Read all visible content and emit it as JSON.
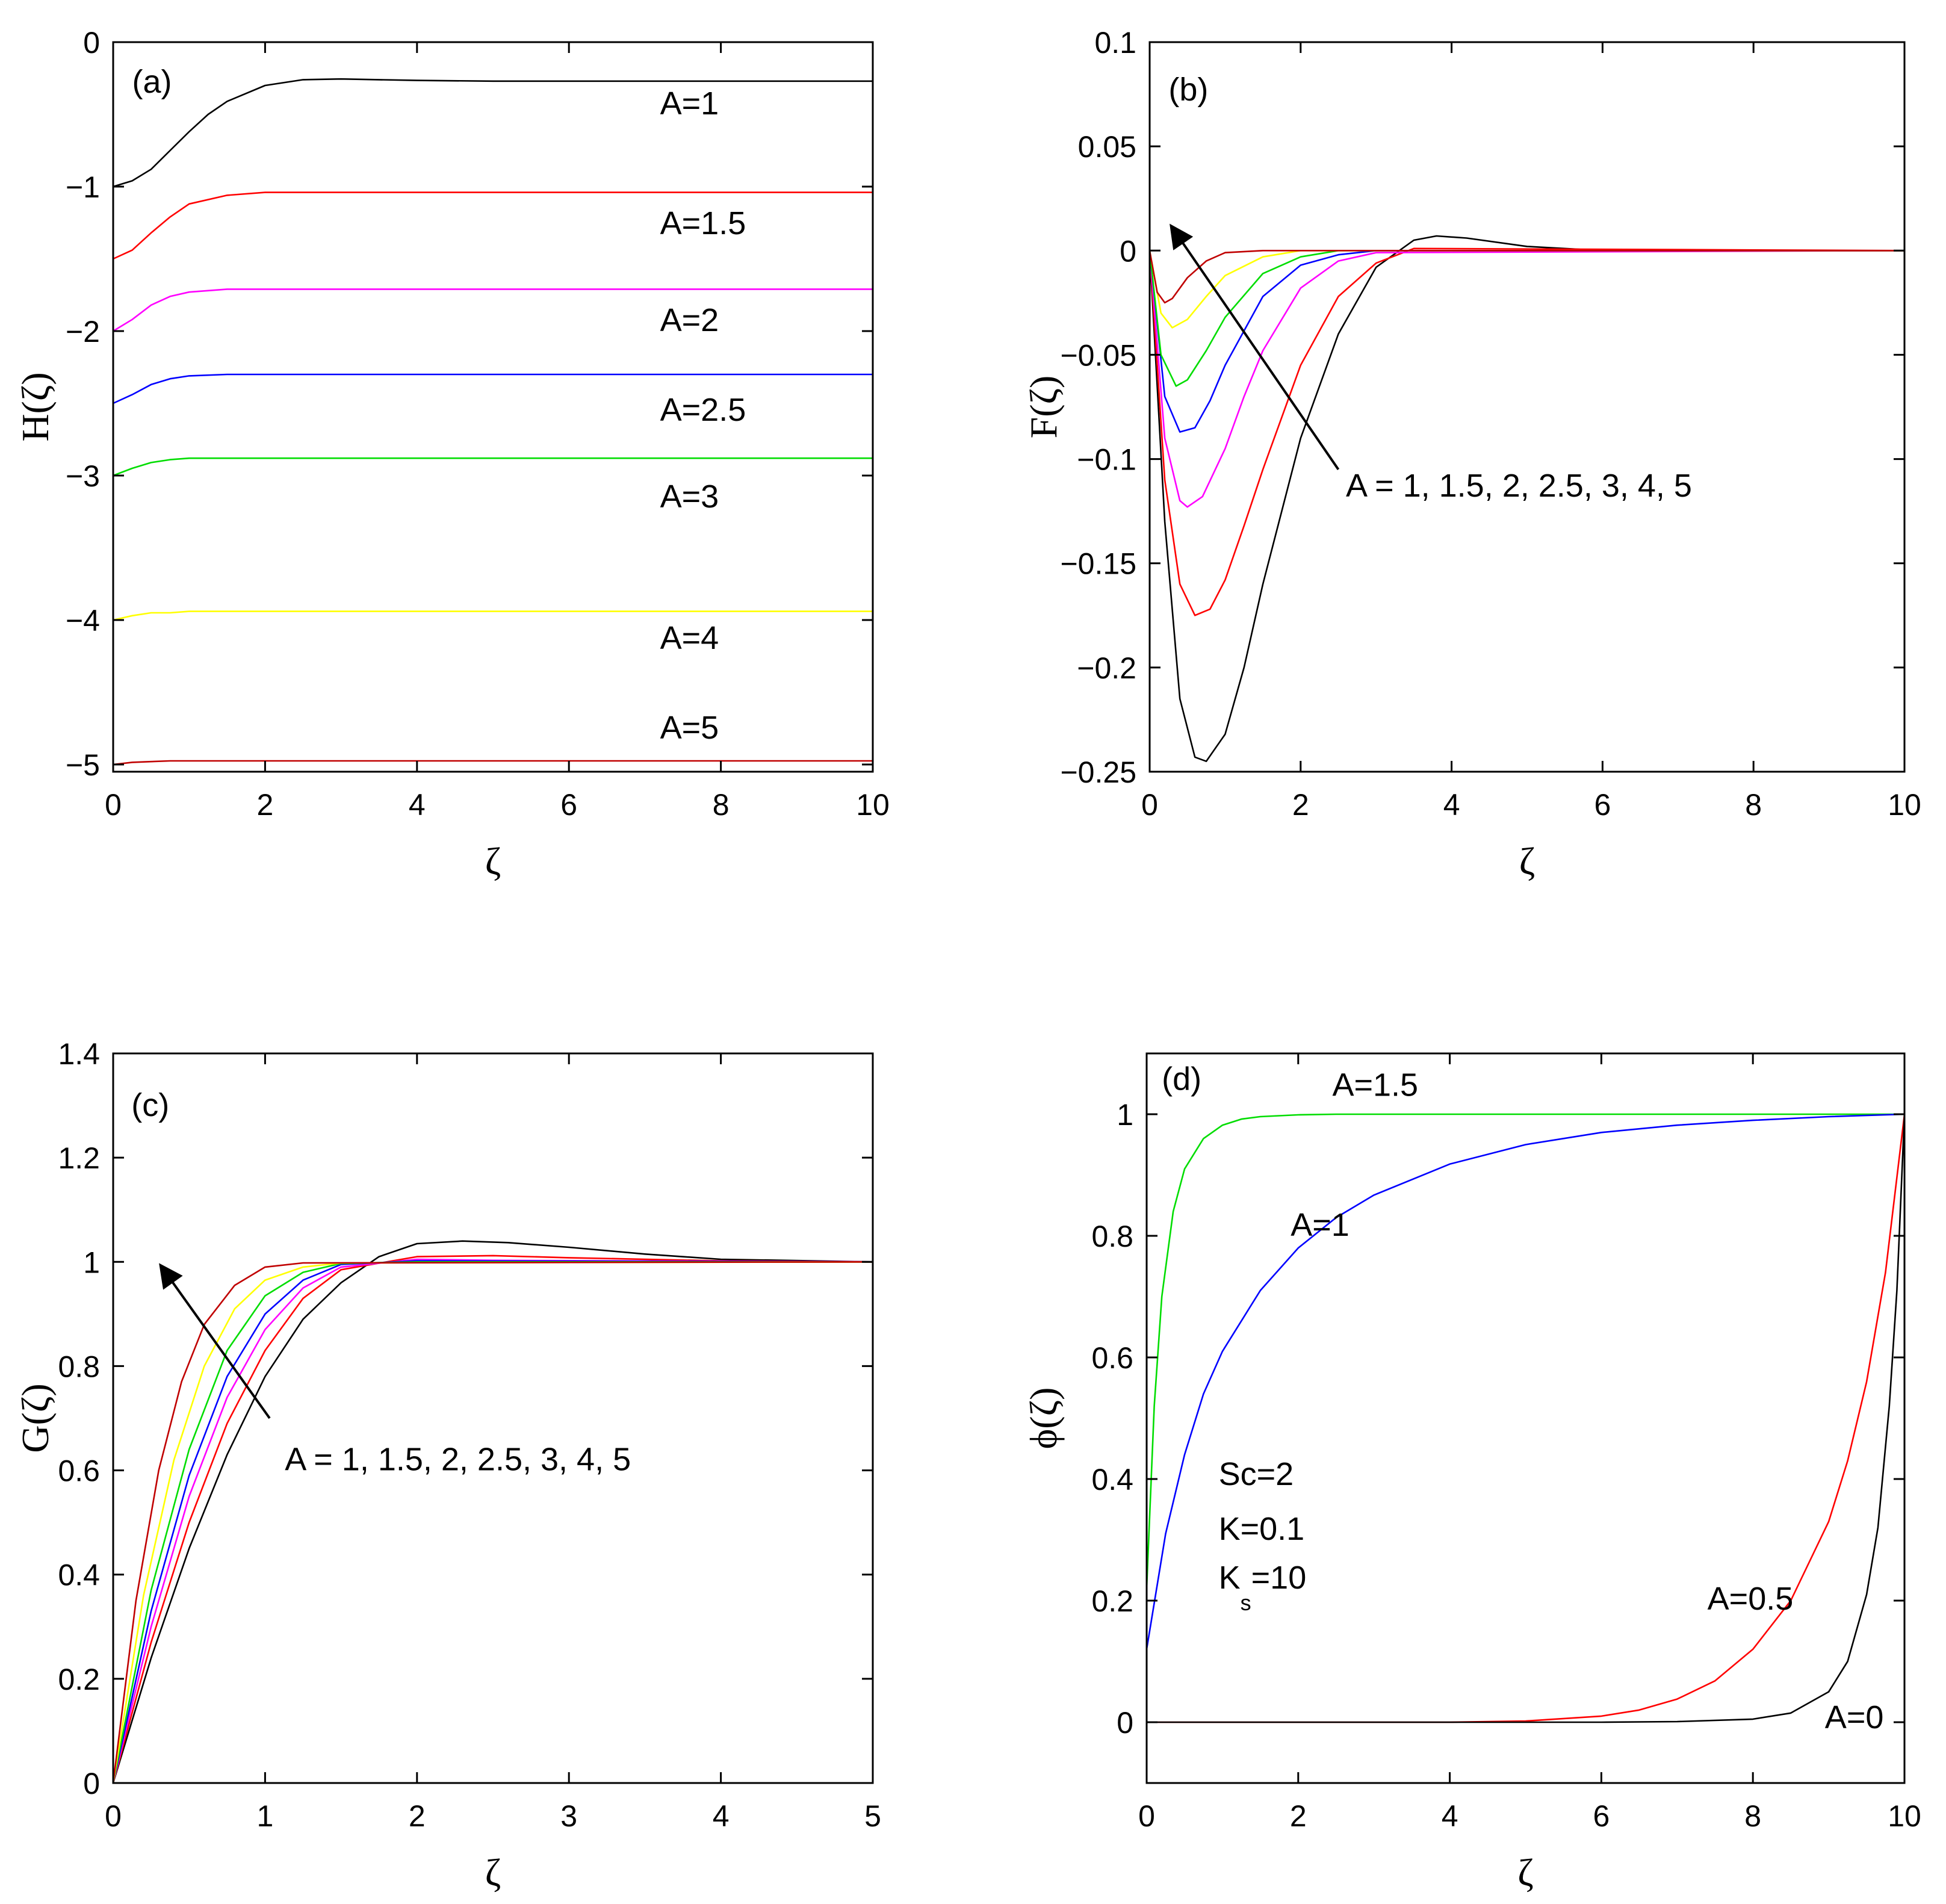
{
  "chart_data": [
    {
      "type": "line",
      "panel_label": "(a)",
      "xlabel": "ζ",
      "ylabel": "H(ζ)",
      "xlim": [
        0,
        10
      ],
      "ylim": [
        -5.05,
        0
      ],
      "xticks": [
        0,
        2,
        4,
        6,
        8,
        10
      ],
      "xtick_labels": [
        "0",
        "2",
        "4",
        "6",
        "8",
        "10"
      ],
      "yticks": [
        0,
        -1,
        -2,
        -3,
        -4,
        -5
      ],
      "ytick_labels": [
        "0",
        "-1",
        "-2",
        "-3",
        "-4",
        "-5"
      ],
      "series": [
        {
          "name": "A=1",
          "color": "#000000",
          "x": [
            0,
            0.25,
            0.5,
            0.75,
            1,
            1.25,
            1.5,
            2,
            2.5,
            3,
            3.5,
            4,
            5,
            6,
            7,
            8,
            10
          ],
          "y": [
            -1.0,
            -0.96,
            -0.88,
            -0.75,
            -0.62,
            -0.5,
            -0.41,
            -0.3,
            -0.26,
            -0.255,
            -0.26,
            -0.265,
            -0.27,
            -0.27,
            -0.27,
            -0.27,
            -0.27
          ]
        },
        {
          "name": "A=1.5",
          "color": "#ff0000",
          "x": [
            0,
            0.25,
            0.5,
            0.75,
            1,
            1.5,
            2,
            2.5,
            3,
            4,
            10
          ],
          "y": [
            -1.5,
            -1.44,
            -1.32,
            -1.21,
            -1.12,
            -1.06,
            -1.04,
            -1.04,
            -1.04,
            -1.04,
            -1.04
          ]
        },
        {
          "name": "A=2",
          "color": "#ff00ff",
          "x": [
            0,
            0.25,
            0.5,
            0.75,
            1,
            1.5,
            2,
            3,
            10
          ],
          "y": [
            -2.0,
            -1.92,
            -1.82,
            -1.76,
            -1.73,
            -1.71,
            -1.71,
            -1.71,
            -1.71
          ]
        },
        {
          "name": "A=2.5",
          "color": "#0000ff",
          "x": [
            0,
            0.25,
            0.5,
            0.75,
            1,
            1.5,
            2,
            10
          ],
          "y": [
            -2.5,
            -2.44,
            -2.37,
            -2.33,
            -2.31,
            -2.3,
            -2.3,
            -2.3
          ]
        },
        {
          "name": "A=3",
          "color": "#00dd00",
          "x": [
            0,
            0.25,
            0.5,
            0.75,
            1,
            1.5,
            10
          ],
          "y": [
            -3.0,
            -2.95,
            -2.91,
            -2.89,
            -2.88,
            -2.88,
            -2.88
          ]
        },
        {
          "name": "A=4",
          "color": "#ffff00",
          "x": [
            0,
            0.25,
            0.5,
            0.75,
            1,
            10
          ],
          "y": [
            -4.0,
            -3.97,
            -3.95,
            -3.95,
            -3.94,
            -3.94
          ]
        },
        {
          "name": "A=5",
          "color": "#c00000",
          "x": [
            0,
            0.25,
            0.5,
            0.75,
            1,
            10
          ],
          "y": [
            -5.0,
            -4.985,
            -4.98,
            -4.975,
            -4.975,
            -4.975
          ]
        }
      ],
      "annotations": [
        {
          "text": "(a)",
          "x": 0.25,
          "y": -0.35
        },
        {
          "text": "A=1",
          "x": 7.2,
          "y": -0.5
        },
        {
          "text": "A=1.5",
          "x": 7.2,
          "y": -1.33
        },
        {
          "text": "A=2",
          "x": 7.2,
          "y": -2.0
        },
        {
          "text": "A=2.5",
          "x": 7.2,
          "y": -2.62
        },
        {
          "text": "A=3",
          "x": 7.2,
          "y": -3.22
        },
        {
          "text": "A=4",
          "x": 7.2,
          "y": -4.2
        },
        {
          "text": "A=5",
          "x": 7.2,
          "y": -4.82
        }
      ]
    },
    {
      "type": "line",
      "panel_label": "(b)",
      "xlabel": "ζ",
      "ylabel": "F(ζ)",
      "xlim": [
        0,
        10
      ],
      "ylim": [
        -0.25,
        0.1
      ],
      "xticks": [
        0,
        2,
        4,
        6,
        8,
        10
      ],
      "xtick_labels": [
        "0",
        "2",
        "4",
        "6",
        "8",
        "10"
      ],
      "yticks": [
        0.1,
        0.05,
        0,
        -0.05,
        -0.1,
        -0.15,
        -0.2,
        -0.25
      ],
      "ytick_labels": [
        "0.1",
        "0.05",
        "0",
        "-0.05",
        "-0.1",
        "-0.15",
        "-0.2",
        "-0.25"
      ],
      "series": [
        {
          "name": "A=1",
          "color": "#000000",
          "x": [
            0,
            0.2,
            0.4,
            0.6,
            0.75,
            1,
            1.25,
            1.5,
            2,
            2.5,
            3,
            3.5,
            3.8,
            4.2,
            5,
            6,
            10
          ],
          "y": [
            0,
            -0.13,
            -0.215,
            -0.243,
            -0.245,
            -0.232,
            -0.2,
            -0.16,
            -0.09,
            -0.04,
            -0.008,
            0.005,
            0.007,
            0.006,
            0.002,
            0.0,
            0
          ]
        },
        {
          "name": "A=1.5",
          "color": "#ff0000",
          "x": [
            0,
            0.2,
            0.4,
            0.6,
            0.8,
            1,
            1.25,
            1.5,
            2,
            2.5,
            3,
            3.5,
            10
          ],
          "y": [
            0,
            -0.11,
            -0.16,
            -0.175,
            -0.172,
            -0.158,
            -0.132,
            -0.105,
            -0.055,
            -0.022,
            -0.006,
            0.001,
            0
          ]
        },
        {
          "name": "A=2",
          "color": "#ff00ff",
          "x": [
            0,
            0.2,
            0.4,
            0.5,
            0.7,
            1,
            1.25,
            1.5,
            2,
            2.5,
            3,
            10
          ],
          "y": [
            0,
            -0.09,
            -0.12,
            -0.123,
            -0.118,
            -0.095,
            -0.07,
            -0.048,
            -0.018,
            -0.005,
            -0.001,
            0
          ]
        },
        {
          "name": "A=2.5",
          "color": "#0000ff",
          "x": [
            0,
            0.2,
            0.4,
            0.6,
            0.8,
            1,
            1.5,
            2,
            2.5,
            3,
            10
          ],
          "y": [
            0,
            -0.07,
            -0.087,
            -0.085,
            -0.072,
            -0.055,
            -0.022,
            -0.007,
            -0.002,
            0,
            0
          ]
        },
        {
          "name": "A=3",
          "color": "#00dd00",
          "x": [
            0,
            0.15,
            0.35,
            0.5,
            0.75,
            1,
            1.5,
            2,
            2.5,
            10
          ],
          "y": [
            0,
            -0.05,
            -0.065,
            -0.062,
            -0.048,
            -0.032,
            -0.011,
            -0.003,
            0,
            0
          ]
        },
        {
          "name": "A=4",
          "color": "#ffff00",
          "x": [
            0,
            0.15,
            0.3,
            0.5,
            0.75,
            1,
            1.5,
            2,
            10
          ],
          "y": [
            0,
            -0.03,
            -0.037,
            -0.033,
            -0.022,
            -0.012,
            -0.003,
            0,
            0
          ]
        },
        {
          "name": "A=5",
          "color": "#c00000",
          "x": [
            0,
            0.1,
            0.2,
            0.3,
            0.5,
            0.75,
            1,
            1.5,
            10
          ],
          "y": [
            0,
            -0.02,
            -0.025,
            -0.023,
            -0.013,
            -0.005,
            -0.001,
            0,
            0
          ]
        }
      ],
      "arrow": {
        "from": [
          2.5,
          -0.105
        ],
        "to": [
          0.3,
          0.011
        ]
      },
      "annotations": [
        {
          "text": "(b)",
          "x": 0.25,
          "y": 0.072
        },
        {
          "text": "A = 1, 1.5, 2, 2.5, 3, 4, 5",
          "x": 2.6,
          "y": -0.118
        }
      ]
    },
    {
      "type": "line",
      "panel_label": "(c)",
      "xlabel": "ζ",
      "ylabel": "G(ζ)",
      "xlim": [
        0,
        5
      ],
      "ylim": [
        0,
        1.4
      ],
      "xticks": [
        0,
        1,
        2,
        3,
        4,
        5
      ],
      "xtick_labels": [
        "0",
        "1",
        "2",
        "3",
        "4",
        "5"
      ],
      "yticks": [
        0,
        0.2,
        0.4,
        0.6,
        0.8,
        1,
        1.2,
        1.4
      ],
      "ytick_labels": [
        "0",
        "0.2",
        "0.4",
        "0.6",
        "0.8",
        "1",
        "1.2",
        "1.4"
      ],
      "series": [
        {
          "name": "A=1",
          "color": "#000000",
          "x": [
            0,
            0.25,
            0.5,
            0.75,
            1,
            1.25,
            1.5,
            1.75,
            2,
            2.3,
            2.6,
            3,
            3.5,
            4,
            5
          ],
          "y": [
            0,
            0.24,
            0.45,
            0.63,
            0.78,
            0.89,
            0.96,
            1.01,
            1.035,
            1.04,
            1.037,
            1.028,
            1.015,
            1.005,
            1.0
          ]
        },
        {
          "name": "A=1.5",
          "color": "#ff0000",
          "x": [
            0,
            0.25,
            0.5,
            0.75,
            1,
            1.25,
            1.5,
            2,
            2.5,
            3,
            4,
            5
          ],
          "y": [
            0,
            0.27,
            0.5,
            0.69,
            0.83,
            0.93,
            0.985,
            1.01,
            1.012,
            1.008,
            1.002,
            1.0
          ]
        },
        {
          "name": "A=2",
          "color": "#ff00ff",
          "x": [
            0,
            0.25,
            0.5,
            0.75,
            1,
            1.25,
            1.5,
            2,
            2.5,
            5
          ],
          "y": [
            0,
            0.3,
            0.55,
            0.74,
            0.87,
            0.95,
            0.99,
            1.005,
            1.003,
            1.0
          ]
        },
        {
          "name": "A=2.5",
          "color": "#0000ff",
          "x": [
            0,
            0.25,
            0.5,
            0.75,
            1,
            1.25,
            1.5,
            2,
            5
          ],
          "y": [
            0,
            0.33,
            0.59,
            0.78,
            0.9,
            0.965,
            0.995,
            1.002,
            1.0
          ]
        },
        {
          "name": "A=3",
          "color": "#00dd00",
          "x": [
            0,
            0.25,
            0.5,
            0.75,
            1,
            1.25,
            1.5,
            2,
            5
          ],
          "y": [
            0,
            0.37,
            0.64,
            0.83,
            0.935,
            0.98,
            0.997,
            1.0,
            1.0
          ]
        },
        {
          "name": "A=4",
          "color": "#ffff00",
          "x": [
            0,
            0.2,
            0.4,
            0.6,
            0.8,
            1,
            1.25,
            1.5,
            5
          ],
          "y": [
            0,
            0.36,
            0.62,
            0.8,
            0.91,
            0.965,
            0.99,
            0.998,
            1.0
          ]
        },
        {
          "name": "A=5",
          "color": "#c00000",
          "x": [
            0,
            0.15,
            0.3,
            0.45,
            0.6,
            0.8,
            1,
            1.25,
            5
          ],
          "y": [
            0,
            0.35,
            0.6,
            0.77,
            0.88,
            0.955,
            0.99,
            0.998,
            1.0
          ]
        }
      ],
      "arrow": {
        "from": [
          1.03,
          0.7
        ],
        "to": [
          0.32,
          0.99
        ]
      },
      "annotations": [
        {
          "text": "(c)",
          "x": 0.12,
          "y": 1.28
        },
        {
          "text": "A = 1, 1.5, 2, 2.5, 3, 4, 5",
          "x": 1.13,
          "y": 0.6
        }
      ]
    },
    {
      "type": "line",
      "panel_label": "(d)",
      "xlabel": "ζ",
      "ylabel": "ϕ(ζ)",
      "xlim": [
        0,
        10
      ],
      "ylim": [
        -0.1,
        1.1
      ],
      "xticks": [
        0,
        2,
        4,
        6,
        8,
        10
      ],
      "xtick_labels": [
        "0",
        "2",
        "4",
        "6",
        "8",
        "10"
      ],
      "yticks": [
        0,
        0.2,
        0.4,
        0.6,
        0.8,
        1
      ],
      "ytick_labels": [
        "0",
        "0.2",
        "0.4",
        "0.6",
        "0.8",
        "1"
      ],
      "series": [
        {
          "name": "A=1.5",
          "color": "#00dd00",
          "x": [
            0,
            0.1,
            0.2,
            0.35,
            0.5,
            0.75,
            1,
            1.25,
            1.5,
            2,
            2.5,
            3,
            10
          ],
          "y": [
            0.22,
            0.52,
            0.7,
            0.84,
            0.91,
            0.96,
            0.982,
            0.992,
            0.996,
            0.999,
            1.0,
            1.0,
            1.0
          ]
        },
        {
          "name": "A=1",
          "color": "#0000ff",
          "x": [
            0,
            0.25,
            0.5,
            0.75,
            1,
            1.5,
            2,
            2.5,
            3,
            4,
            5,
            6,
            7,
            8,
            9,
            10
          ],
          "y": [
            0.12,
            0.31,
            0.44,
            0.54,
            0.61,
            0.71,
            0.78,
            0.83,
            0.867,
            0.918,
            0.95,
            0.97,
            0.982,
            0.99,
            0.996,
            1.0
          ]
        },
        {
          "name": "A=0.5",
          "color": "#ff0000",
          "x": [
            0,
            2,
            4,
            5,
            6,
            6.5,
            7,
            7.5,
            8,
            8.5,
            9,
            9.25,
            9.5,
            9.75,
            10
          ],
          "y": [
            0,
            0,
            0,
            0.002,
            0.01,
            0.02,
            0.038,
            0.068,
            0.12,
            0.2,
            0.33,
            0.43,
            0.56,
            0.74,
            1.0
          ]
        },
        {
          "name": "A=0",
          "color": "#000000",
          "x": [
            0,
            4,
            6,
            7,
            8,
            8.5,
            9,
            9.25,
            9.5,
            9.65,
            9.8,
            9.9,
            10
          ],
          "y": [
            0,
            0,
            0,
            0.001,
            0.005,
            0.015,
            0.05,
            0.1,
            0.21,
            0.32,
            0.52,
            0.71,
            1.0
          ]
        }
      ],
      "annotations": [
        {
          "text": "(d)",
          "x": 0.2,
          "y": 1.04
        },
        {
          "text": "A=1.5",
          "x": 2.45,
          "y": 1.03
        },
        {
          "text": "A=1",
          "x": 1.9,
          "y": 0.8
        },
        {
          "text": "A=0.5",
          "x": 7.4,
          "y": 0.185
        },
        {
          "text": "A=0",
          "x": 8.95,
          "y": -0.01
        },
        {
          "text": "Sc=2",
          "x": 0.95,
          "y": 0.39
        },
        {
          "text": "K=0.1",
          "x": 0.95,
          "y": 0.3
        },
        {
          "text": "K",
          "sub": "s",
          "suffix": "=10",
          "x": 0.95,
          "y": 0.22
        }
      ]
    }
  ]
}
